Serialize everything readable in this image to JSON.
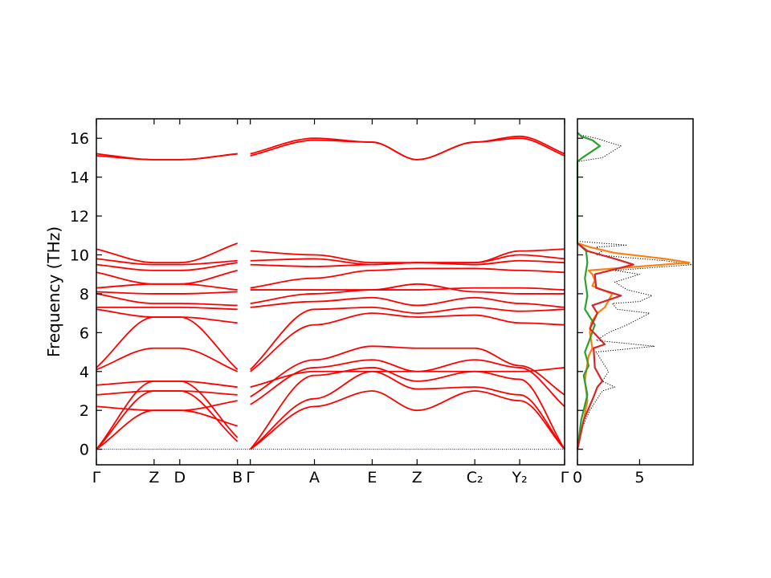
{
  "chart_data": [
    {
      "type": "line",
      "title": "",
      "ylabel": "Frequency (THz)",
      "ylim": [
        -0.8,
        17.0
      ],
      "yticks": [
        0,
        2,
        4,
        6,
        8,
        10,
        12,
        14,
        16
      ],
      "segments": [
        {
          "labels": [
            "Γ",
            "Z",
            "D",
            "B"
          ]
        },
        {
          "labels": [
            "Γ",
            "A",
            "E",
            "Z",
            "C₂",
            "Y₂",
            "Γ"
          ]
        }
      ],
      "xtick_labels": [
        "Γ",
        "Z",
        "D",
        "B",
        "Γ",
        "A",
        "E",
        "Z",
        "C₂",
        "Y₂",
        "Γ"
      ],
      "xtick_positions": [
        0.0,
        0.9,
        1.3,
        2.2,
        2.4,
        3.4,
        4.3,
        5.0,
        5.9,
        6.6,
        7.3
      ],
      "band_color": "#ff0000",
      "zero_line_color": "#0000cc",
      "bands": [
        {
          "x": [
            0.0,
            0.9,
            1.3,
            2.2
          ],
          "y": [
            0.0,
            3.0,
            3.0,
            0.4
          ]
        },
        {
          "x": [
            0.0,
            0.9,
            1.3,
            2.2
          ],
          "y": [
            0.0,
            3.5,
            3.5,
            0.6
          ]
        },
        {
          "x": [
            0.0,
            0.9,
            1.3,
            2.2
          ],
          "y": [
            0.0,
            2.0,
            2.0,
            1.2
          ]
        },
        {
          "x": [
            0.0,
            0.9,
            1.3,
            2.2
          ],
          "y": [
            2.2,
            2.0,
            2.0,
            2.5
          ]
        },
        {
          "x": [
            0.0,
            0.9,
            1.3,
            2.2
          ],
          "y": [
            2.8,
            3.0,
            3.0,
            2.8
          ]
        },
        {
          "x": [
            0.0,
            0.9,
            1.3,
            2.2
          ],
          "y": [
            3.3,
            3.5,
            3.5,
            3.2
          ]
        },
        {
          "x": [
            0.0,
            0.9,
            1.3,
            2.2
          ],
          "y": [
            4.1,
            5.2,
            5.2,
            4.0
          ]
        },
        {
          "x": [
            0.0,
            0.9,
            1.3,
            2.2
          ],
          "y": [
            4.2,
            6.8,
            6.8,
            4.1
          ]
        },
        {
          "x": [
            0.0,
            0.9,
            1.3,
            2.2
          ],
          "y": [
            7.2,
            6.8,
            6.8,
            6.5
          ]
        },
        {
          "x": [
            0.0,
            0.9,
            1.3,
            2.2
          ],
          "y": [
            7.3,
            7.3,
            7.3,
            7.2
          ]
        },
        {
          "x": [
            0.0,
            0.9,
            1.3,
            2.2
          ],
          "y": [
            8.0,
            7.5,
            7.5,
            7.4
          ]
        },
        {
          "x": [
            0.0,
            0.9,
            1.3,
            2.2
          ],
          "y": [
            8.1,
            8.0,
            8.0,
            8.1
          ]
        },
        {
          "x": [
            0.0,
            0.9,
            1.3,
            2.2
          ],
          "y": [
            8.3,
            8.5,
            8.5,
            8.2
          ]
        },
        {
          "x": [
            0.0,
            0.9,
            1.3,
            2.2
          ],
          "y": [
            9.1,
            8.5,
            8.5,
            9.2
          ]
        },
        {
          "x": [
            0.0,
            0.9,
            1.3,
            2.2
          ],
          "y": [
            9.5,
            9.2,
            9.2,
            9.6
          ]
        },
        {
          "x": [
            0.0,
            0.9,
            1.3,
            2.2
          ],
          "y": [
            9.8,
            9.5,
            9.5,
            9.7
          ]
        },
        {
          "x": [
            0.0,
            0.9,
            1.3,
            2.2
          ],
          "y": [
            10.3,
            9.6,
            9.6,
            10.6
          ]
        },
        {
          "x": [
            0.0,
            0.9,
            1.3,
            2.2
          ],
          "y": [
            15.1,
            14.9,
            14.9,
            15.2
          ]
        },
        {
          "x": [
            0.0,
            0.9,
            1.3,
            2.2
          ],
          "y": [
            15.2,
            14.9,
            14.9,
            15.2
          ]
        },
        {
          "x": [
            2.4,
            3.4,
            4.3,
            5.0,
            5.9,
            6.6,
            7.3
          ],
          "y": [
            0.0,
            2.2,
            3.0,
            2.0,
            3.0,
            2.5,
            0.0
          ]
        },
        {
          "x": [
            2.4,
            3.4,
            4.3,
            5.0,
            5.9,
            6.6,
            7.3
          ],
          "y": [
            0.0,
            2.6,
            4.0,
            3.1,
            3.2,
            2.8,
            0.0
          ]
        },
        {
          "x": [
            2.4,
            3.4,
            4.3,
            5.0,
            5.9,
            6.6,
            7.3
          ],
          "y": [
            0.0,
            3.8,
            4.2,
            3.5,
            4.0,
            3.6,
            0.0
          ]
        },
        {
          "x": [
            2.4,
            3.4,
            4.3,
            5.0,
            5.9,
            6.6,
            7.3
          ],
          "y": [
            2.3,
            4.2,
            4.6,
            4.0,
            4.6,
            4.2,
            2.2
          ]
        },
        {
          "x": [
            2.4,
            3.4,
            4.3,
            5.0,
            5.9,
            6.6,
            7.3
          ],
          "y": [
            2.7,
            4.6,
            5.3,
            5.2,
            5.2,
            4.3,
            2.8
          ]
        },
        {
          "x": [
            2.4,
            3.4,
            4.3,
            5.0,
            5.9,
            6.6,
            7.3
          ],
          "y": [
            3.2,
            4.0,
            4.0,
            4.0,
            4.0,
            4.0,
            4.2
          ]
        },
        {
          "x": [
            2.4,
            3.4,
            4.3,
            5.0,
            5.9,
            6.6,
            7.3
          ],
          "y": [
            4.0,
            6.4,
            7.0,
            6.8,
            6.9,
            6.5,
            6.4
          ]
        },
        {
          "x": [
            2.4,
            3.4,
            4.3,
            5.0,
            5.9,
            6.6,
            7.3
          ],
          "y": [
            4.1,
            7.2,
            7.3,
            7.0,
            7.3,
            7.1,
            7.2
          ]
        },
        {
          "x": [
            2.4,
            3.4,
            4.3,
            5.0,
            5.9,
            6.6,
            7.3
          ],
          "y": [
            7.3,
            7.6,
            7.8,
            7.4,
            7.8,
            7.5,
            7.3
          ]
        },
        {
          "x": [
            2.4,
            3.4,
            4.3,
            5.0,
            5.9,
            6.6,
            7.3
          ],
          "y": [
            7.5,
            8.0,
            8.2,
            8.5,
            8.1,
            8.0,
            8.0
          ]
        },
        {
          "x": [
            2.4,
            3.4,
            4.3,
            5.0,
            5.9,
            6.6,
            7.3
          ],
          "y": [
            8.2,
            8.2,
            8.2,
            8.2,
            8.3,
            8.3,
            8.2
          ]
        },
        {
          "x": [
            2.4,
            3.4,
            4.3,
            5.0,
            5.9,
            6.6,
            7.3
          ],
          "y": [
            8.3,
            8.8,
            9.2,
            9.3,
            9.3,
            9.2,
            9.1
          ]
        },
        {
          "x": [
            2.4,
            3.4,
            4.3,
            5.0,
            5.9,
            6.6,
            7.3
          ],
          "y": [
            9.5,
            9.4,
            9.5,
            9.6,
            9.5,
            9.7,
            9.6
          ]
        },
        {
          "x": [
            2.4,
            3.4,
            4.3,
            5.0,
            5.9,
            6.6,
            7.3
          ],
          "y": [
            9.7,
            9.8,
            9.5,
            9.6,
            9.6,
            10.0,
            9.8
          ]
        },
        {
          "x": [
            2.4,
            3.4,
            4.3,
            5.0,
            5.9,
            6.6,
            7.3
          ],
          "y": [
            10.2,
            10.0,
            9.6,
            9.6,
            9.6,
            10.2,
            10.3
          ]
        },
        {
          "x": [
            2.4,
            3.4,
            4.3,
            5.0,
            5.9,
            6.6,
            7.3
          ],
          "y": [
            15.1,
            15.9,
            15.8,
            14.9,
            15.8,
            16.0,
            15.1
          ]
        },
        {
          "x": [
            2.4,
            3.4,
            4.3,
            5.0,
            5.9,
            6.6,
            7.3
          ],
          "y": [
            15.2,
            16.0,
            15.8,
            14.9,
            15.8,
            16.1,
            15.2
          ]
        }
      ]
    },
    {
      "type": "line",
      "title": "",
      "xlim": [
        0,
        9.3
      ],
      "ylim": [
        -0.8,
        17.0
      ],
      "xticks": [
        0,
        5
      ],
      "orientation": "horizontal",
      "series": [
        {
          "style": "dotted",
          "color": "#000000",
          "x": [
            0.0,
            0.3,
            1.0,
            1.5,
            2.0,
            3.0,
            2.0,
            2.5,
            2.0,
            1.5,
            6.2,
            1.5,
            2.5,
            4.0,
            5.8,
            3.2,
            2.8,
            5.0,
            6.0,
            4.0,
            3.0,
            5.0,
            3.0,
            9.3,
            7.0,
            1.5,
            2.0,
            1.5,
            4.0,
            0.0,
            0.0,
            2.0,
            3.5,
            1.5,
            0.0
          ],
          "y": [
            0.0,
            1.0,
            2.0,
            2.5,
            3.0,
            3.2,
            3.5,
            4.0,
            4.5,
            5.0,
            5.3,
            5.6,
            6.0,
            6.4,
            7.0,
            7.2,
            7.5,
            7.6,
            7.9,
            8.2,
            8.6,
            9.0,
            9.2,
            9.5,
            9.7,
            10.0,
            10.2,
            10.4,
            10.5,
            10.7,
            14.8,
            15.0,
            15.6,
            16.0,
            16.2
          ]
        },
        {
          "style": "solid",
          "color": "#ff7f0e",
          "x": [
            0.0,
            0.5,
            0.8,
            0.6,
            0.7,
            0.9,
            1.2,
            1.0,
            1.1,
            1.6,
            2.2,
            2.8,
            1.2,
            1.4,
            1.2,
            0.9,
            9.0,
            7.0,
            3.0,
            1.0,
            0.0
          ],
          "y": [
            0.0,
            1.5,
            2.5,
            3.5,
            4.0,
            4.8,
            5.2,
            6.0,
            6.5,
            7.0,
            7.3,
            8.0,
            8.4,
            8.7,
            9.0,
            9.2,
            9.6,
            9.8,
            10.1,
            10.4,
            10.6
          ]
        },
        {
          "style": "solid",
          "color": "#2ca02c",
          "x": [
            0.0,
            0.3,
            0.8,
            0.5,
            0.9,
            0.6,
            0.9,
            1.4,
            0.6,
            0.8,
            0.6,
            0.8,
            0.7,
            0.0,
            0.0,
            0.4,
            1.8,
            1.2,
            0.3,
            0.0
          ],
          "y": [
            0.0,
            1.5,
            2.8,
            3.8,
            4.3,
            5.0,
            5.5,
            6.4,
            7.2,
            7.9,
            8.8,
            9.6,
            10.2,
            10.6,
            14.8,
            15.0,
            15.6,
            15.9,
            16.1,
            16.3
          ]
        },
        {
          "style": "solid",
          "color": "#d62728",
          "x": [
            0.0,
            0.5,
            1.3,
            1.6,
            2.0,
            1.4,
            1.3,
            2.2,
            1.0,
            1.6,
            1.2,
            3.5,
            1.5,
            1.4,
            4.5,
            3.0,
            0.8,
            0.0
          ],
          "y": [
            0.0,
            1.5,
            2.7,
            3.2,
            3.5,
            4.2,
            5.2,
            5.4,
            6.2,
            7.0,
            7.4,
            7.9,
            8.3,
            9.0,
            9.5,
            9.8,
            10.2,
            10.6
          ]
        }
      ]
    }
  ]
}
